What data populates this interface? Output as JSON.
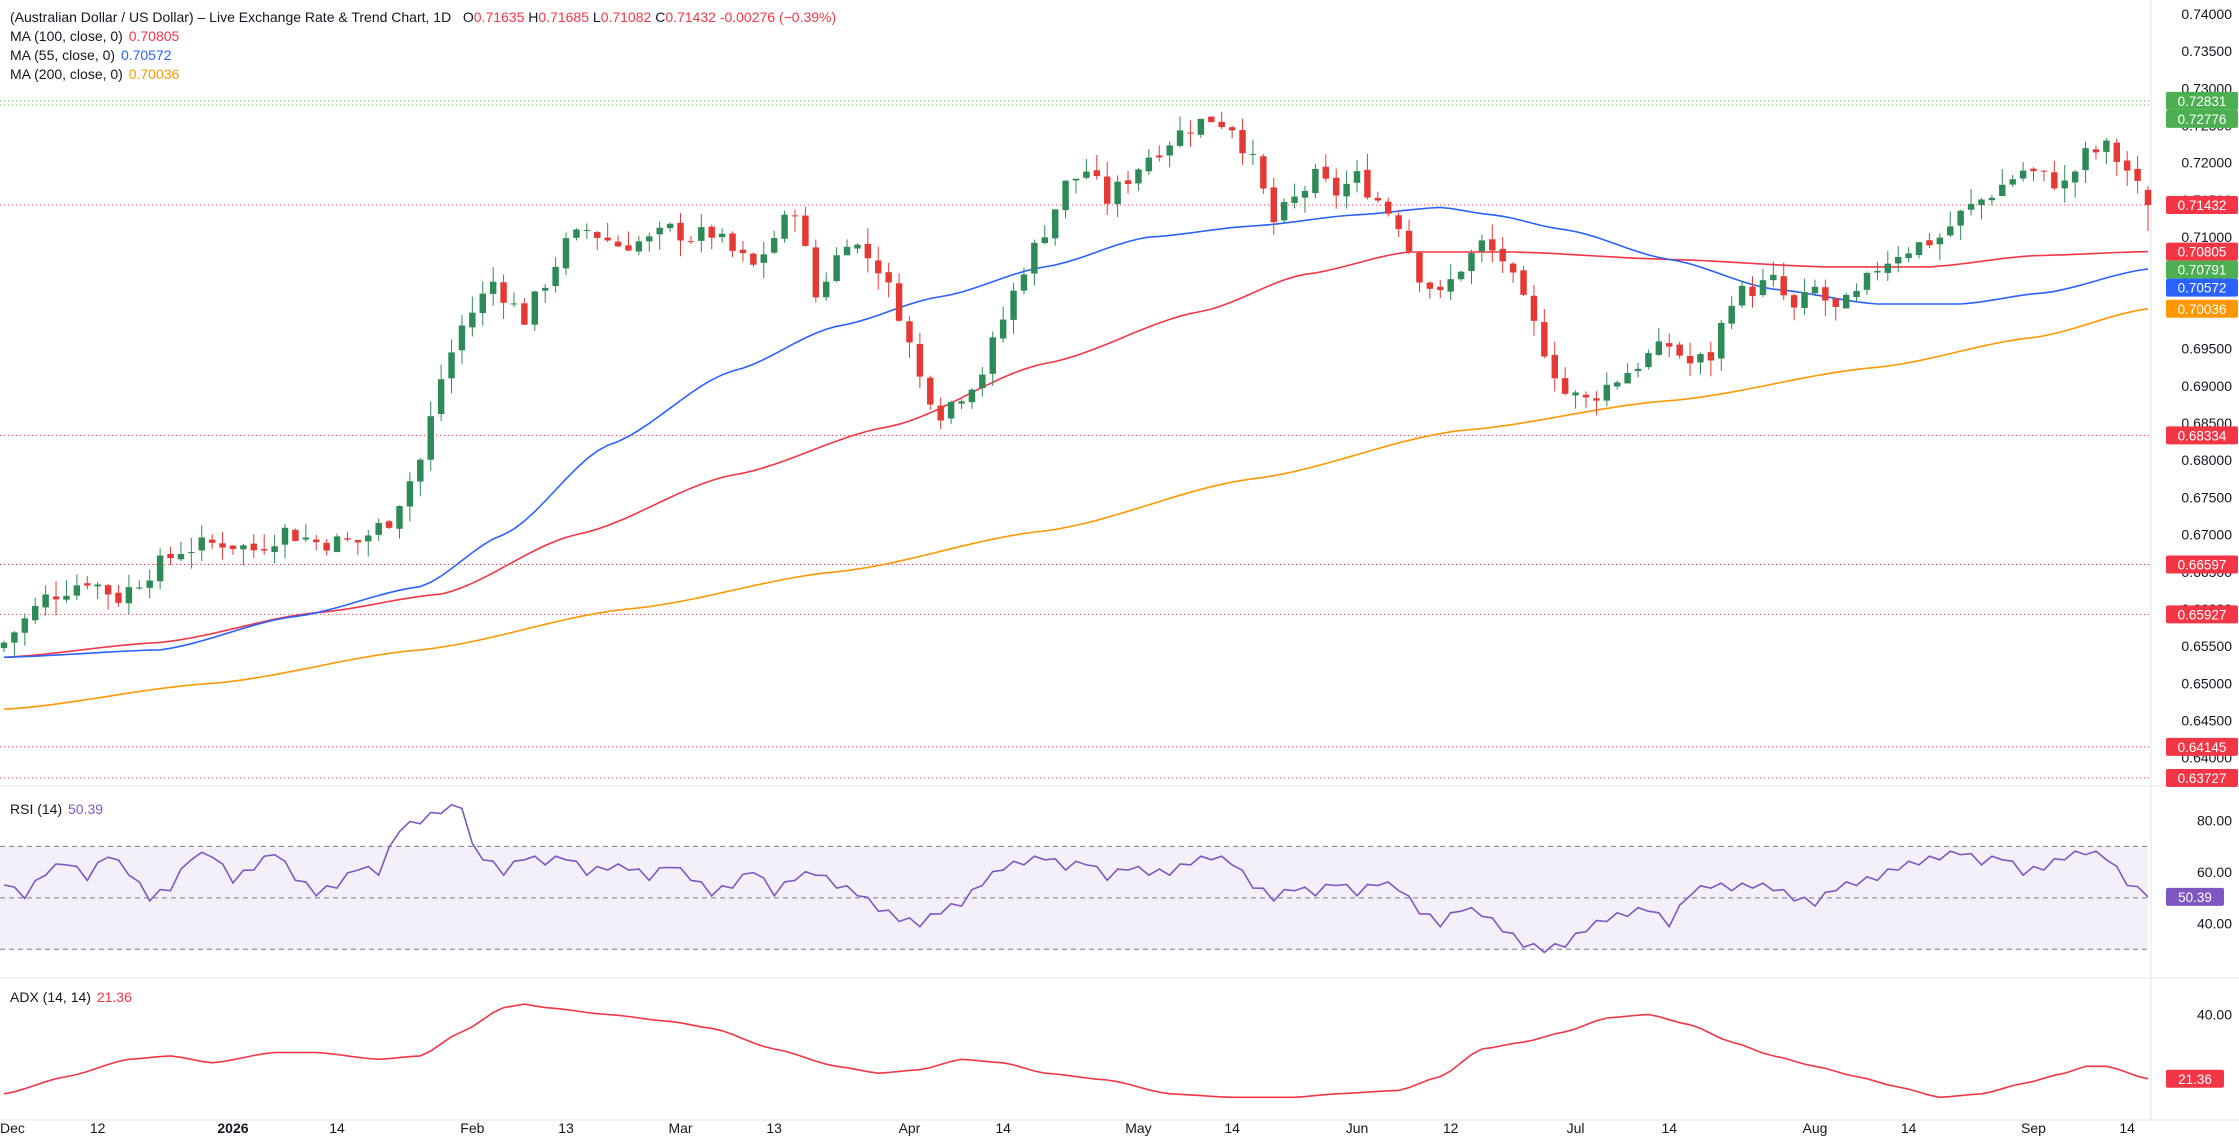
{
  "header": {
    "title": "(Australian Dollar / US Dollar) – Live Exchange Rate & Trend Chart, 1D",
    "open_label": "O",
    "open": "0.71635",
    "high_label": "H",
    "high": "0.71685",
    "low_label": "L",
    "low": "0.71082",
    "close_label": "C",
    "close": "0.71432",
    "change": "-0.00276 (−0.39%)"
  },
  "indicators": {
    "ma100": {
      "label": "MA (100, close, 0)",
      "value": "0.70805",
      "color": "#f23645"
    },
    "ma55": {
      "label": "MA (55, close, 0)",
      "value": "0.70572",
      "color": "#2962ff"
    },
    "ma200": {
      "label": "MA (200, close, 0)",
      "value": "0.70036",
      "color": "#ff9800"
    },
    "rsi": {
      "label": "RSI (14)",
      "value": "50.39",
      "color": "#7e57c2"
    },
    "adx": {
      "label": "ADX (14, 14)",
      "value": "21.36",
      "color": "#f23645"
    }
  },
  "chart_data": {
    "type": "candlestick",
    "price_axis": {
      "range": [
        0.637,
        0.74
      ],
      "ticks": [
        "0.74000",
        "0.73500",
        "0.73000",
        "0.72500",
        "0.72000",
        "0.71500",
        "0.71000",
        "0.70500",
        "0.70000",
        "0.69500",
        "0.69000",
        "0.68500",
        "0.68000",
        "0.67500",
        "0.67000",
        "0.66500",
        "0.66000",
        "0.65500",
        "0.65000",
        "0.64500",
        "0.64000"
      ]
    },
    "time_axis": {
      "labels": [
        {
          "label": "Dec",
          "index": 0
        },
        {
          "label": "12",
          "index": 9
        },
        {
          "label": "2026",
          "index": 22,
          "bold": true
        },
        {
          "label": "14",
          "index": 32
        },
        {
          "label": "Feb",
          "index": 45
        },
        {
          "label": "13",
          "index": 54
        },
        {
          "label": "Mar",
          "index": 65
        },
        {
          "label": "13",
          "index": 74
        },
        {
          "label": "Apr",
          "index": 87
        },
        {
          "label": "14",
          "index": 96
        },
        {
          "label": "May",
          "index": 109
        },
        {
          "label": "14",
          "index": 118
        },
        {
          "label": "Jun",
          "index": 130
        },
        {
          "label": "12",
          "index": 139
        },
        {
          "label": "Jul",
          "index": 151
        },
        {
          "label": "14",
          "index": 160
        },
        {
          "label": "Aug",
          "index": 174
        },
        {
          "label": "14",
          "index": 183
        },
        {
          "label": "Sep",
          "index": 195
        },
        {
          "label": "14",
          "index": 204
        }
      ]
    },
    "horizontal_levels": [
      {
        "value": 0.72831,
        "label": "0.72831",
        "color": "#4caf50"
      },
      {
        "value": 0.72776,
        "label": "0.72776",
        "color": "#4caf50"
      },
      {
        "value": 0.71432,
        "label": "0.71432",
        "color": "#f23645"
      },
      {
        "value": 0.68334,
        "label": "0.68334",
        "color": "#f23645"
      },
      {
        "value": 0.66597,
        "label": "0.66597",
        "color": "#f23645"
      },
      {
        "value": 0.65927,
        "label": "0.65927",
        "color": "#f23645"
      },
      {
        "value": 0.64145,
        "label": "0.64145",
        "color": "#f23645"
      },
      {
        "value": 0.63727,
        "label": "0.63727",
        "color": "#f23645"
      }
    ],
    "price_badges": [
      {
        "value": 0.70805,
        "label": "0.70805",
        "color": "#f23645"
      },
      {
        "value": 0.70791,
        "label": "0.70791",
        "color": "#4caf50"
      },
      {
        "value": 0.70572,
        "label": "0.70572",
        "color": "#2962ff"
      },
      {
        "value": 0.70036,
        "label": "0.70036",
        "color": "#ff9800"
      }
    ],
    "close_path": [
      [
        0,
        0.6555
      ],
      [
        4,
        0.6615
      ],
      [
        8,
        0.664
      ],
      [
        11,
        0.6615
      ],
      [
        14,
        0.665
      ],
      [
        17,
        0.668
      ],
      [
        21,
        0.669
      ],
      [
        24,
        0.668
      ],
      [
        27,
        0.6705
      ],
      [
        30,
        0.669
      ],
      [
        34,
        0.669
      ],
      [
        37,
        0.672
      ],
      [
        40,
        0.68
      ],
      [
        42,
        0.691
      ],
      [
        44,
        0.698
      ],
      [
        47,
        0.704
      ],
      [
        50,
        0.699
      ],
      [
        52,
        0.704
      ],
      [
        54,
        0.709
      ],
      [
        56,
        0.711
      ],
      [
        59,
        0.709
      ],
      [
        62,
        0.7095
      ],
      [
        64,
        0.711
      ],
      [
        66,
        0.71
      ],
      [
        68,
        0.7105
      ],
      [
        70,
        0.708
      ],
      [
        72,
        0.706
      ],
      [
        74,
        0.71
      ],
      [
        76,
        0.714
      ],
      [
        78,
        0.702
      ],
      [
        81,
        0.71
      ],
      [
        84,
        0.706
      ],
      [
        86,
        0.7
      ],
      [
        88,
        0.691
      ],
      [
        90,
        0.6865
      ],
      [
        92,
        0.689
      ],
      [
        94,
        0.692
      ],
      [
        96,
        0.699
      ],
      [
        98,
        0.706
      ],
      [
        100,
        0.711
      ],
      [
        102,
        0.717
      ],
      [
        104,
        0.719
      ],
      [
        106,
        0.715
      ],
      [
        108,
        0.718
      ],
      [
        110,
        0.721
      ],
      [
        112,
        0.723
      ],
      [
        114,
        0.725
      ],
      [
        116,
        0.726
      ],
      [
        118,
        0.725
      ],
      [
        120,
        0.72
      ],
      [
        122,
        0.712
      ],
      [
        124,
        0.715
      ],
      [
        126,
        0.718
      ],
      [
        128,
        0.716
      ],
      [
        130,
        0.718
      ],
      [
        132,
        0.715
      ],
      [
        134,
        0.712
      ],
      [
        136,
        0.705
      ],
      [
        138,
        0.702
      ],
      [
        140,
        0.706
      ],
      [
        142,
        0.709
      ],
      [
        144,
        0.707
      ],
      [
        146,
        0.701
      ],
      [
        148,
        0.695
      ],
      [
        150,
        0.689
      ],
      [
        152,
        0.688
      ],
      [
        154,
        0.69
      ],
      [
        156,
        0.692
      ],
      [
        158,
        0.694
      ],
      [
        160,
        0.6955
      ],
      [
        162,
        0.693
      ],
      [
        164,
        0.694
      ],
      [
        166,
        0.702
      ],
      [
        168,
        0.703
      ],
      [
        170,
        0.704
      ],
      [
        172,
        0.7
      ],
      [
        174,
        0.703
      ],
      [
        176,
        0.7
      ],
      [
        178,
        0.702
      ],
      [
        180,
        0.706
      ],
      [
        182,
        0.708
      ],
      [
        184,
        0.709
      ],
      [
        186,
        0.71
      ],
      [
        188,
        0.713
      ],
      [
        190,
        0.715
      ],
      [
        192,
        0.717
      ],
      [
        194,
        0.719
      ],
      [
        196,
        0.718
      ],
      [
        198,
        0.717
      ],
      [
        200,
        0.721
      ],
      [
        202,
        0.722
      ],
      [
        204,
        0.719
      ],
      [
        206,
        0.7143
      ]
    ],
    "ma_series": [
      {
        "name": "MA (100, close, 0)",
        "color": "#f23645",
        "points": [
          [
            0,
            0.6535
          ],
          [
            15,
            0.6555
          ],
          [
            30,
            0.6595
          ],
          [
            42,
            0.662
          ],
          [
            55,
            0.67
          ],
          [
            70,
            0.678
          ],
          [
            85,
            0.6845
          ],
          [
            100,
            0.693
          ],
          [
            115,
            0.7
          ],
          [
            125,
            0.705
          ],
          [
            135,
            0.708
          ],
          [
            145,
            0.708
          ],
          [
            160,
            0.707
          ],
          [
            175,
            0.706
          ],
          [
            185,
            0.706
          ],
          [
            195,
            0.7075
          ],
          [
            206,
            0.70805
          ]
        ]
      },
      {
        "name": "MA (55, close, 0)",
        "color": "#2962ff",
        "points": [
          [
            0,
            0.6535
          ],
          [
            15,
            0.6545
          ],
          [
            28,
            0.659
          ],
          [
            40,
            0.663
          ],
          [
            48,
            0.67
          ],
          [
            58,
            0.682
          ],
          [
            70,
            0.692
          ],
          [
            80,
            0.698
          ],
          [
            90,
            0.702
          ],
          [
            100,
            0.706
          ],
          [
            110,
            0.71
          ],
          [
            120,
            0.7115
          ],
          [
            130,
            0.713
          ],
          [
            138,
            0.714
          ],
          [
            143,
            0.713
          ],
          [
            150,
            0.711
          ],
          [
            160,
            0.707
          ],
          [
            170,
            0.703
          ],
          [
            180,
            0.701
          ],
          [
            188,
            0.701
          ],
          [
            196,
            0.7025
          ],
          [
            206,
            0.70572
          ]
        ]
      },
      {
        "name": "MA (200, close, 0)",
        "color": "#ff9800",
        "points": [
          [
            0,
            0.6465
          ],
          [
            20,
            0.65
          ],
          [
            40,
            0.6545
          ],
          [
            60,
            0.66
          ],
          [
            80,
            0.665
          ],
          [
            100,
            0.6705
          ],
          [
            120,
            0.6775
          ],
          [
            140,
            0.684
          ],
          [
            160,
            0.688
          ],
          [
            180,
            0.6925
          ],
          [
            195,
            0.6965
          ],
          [
            206,
            0.70036
          ]
        ]
      }
    ],
    "rsi": {
      "range": [
        20,
        90
      ],
      "ticks": [
        "80.00",
        "60.00",
        "40.00"
      ],
      "band": [
        30,
        70
      ],
      "midline": 50,
      "last": 50.39,
      "last_label": "50.39",
      "points": [
        [
          0,
          55
        ],
        [
          2,
          51
        ],
        [
          4,
          60
        ],
        [
          6,
          64
        ],
        [
          8,
          58
        ],
        [
          10,
          67
        ],
        [
          12,
          60
        ],
        [
          14,
          50
        ],
        [
          16,
          54
        ],
        [
          18,
          66
        ],
        [
          20,
          67
        ],
        [
          22,
          57
        ],
        [
          24,
          62
        ],
        [
          26,
          68
        ],
        [
          28,
          58
        ],
        [
          30,
          52
        ],
        [
          32,
          55
        ],
        [
          34,
          62
        ],
        [
          36,
          60
        ],
        [
          38,
          77
        ],
        [
          40,
          80
        ],
        [
          42,
          84
        ],
        [
          44,
          86
        ],
        [
          45,
          70
        ],
        [
          46,
          66
        ],
        [
          48,
          60
        ],
        [
          50,
          66
        ],
        [
          52,
          64
        ],
        [
          54,
          66
        ],
        [
          56,
          60
        ],
        [
          58,
          62
        ],
        [
          60,
          62
        ],
        [
          62,
          58
        ],
        [
          64,
          63
        ],
        [
          66,
          58
        ],
        [
          68,
          52
        ],
        [
          70,
          55
        ],
        [
          72,
          61
        ],
        [
          74,
          52
        ],
        [
          76,
          58
        ],
        [
          78,
          60
        ],
        [
          80,
          55
        ],
        [
          82,
          52
        ],
        [
          84,
          46
        ],
        [
          86,
          42
        ],
        [
          88,
          40
        ],
        [
          90,
          45
        ],
        [
          92,
          48
        ],
        [
          94,
          56
        ],
        [
          96,
          62
        ],
        [
          98,
          64
        ],
        [
          100,
          66
        ],
        [
          102,
          62
        ],
        [
          104,
          64
        ],
        [
          106,
          58
        ],
        [
          108,
          62
        ],
        [
          110,
          60
        ],
        [
          112,
          60
        ],
        [
          114,
          64
        ],
        [
          116,
          66
        ],
        [
          118,
          64
        ],
        [
          120,
          55
        ],
        [
          122,
          50
        ],
        [
          124,
          54
        ],
        [
          126,
          52
        ],
        [
          128,
          56
        ],
        [
          130,
          52
        ],
        [
          132,
          56
        ],
        [
          134,
          54
        ],
        [
          136,
          45
        ],
        [
          138,
          40
        ],
        [
          140,
          46
        ],
        [
          142,
          44
        ],
        [
          144,
          38
        ],
        [
          146,
          32
        ],
        [
          148,
          30
        ],
        [
          150,
          32
        ],
        [
          152,
          38
        ],
        [
          154,
          42
        ],
        [
          156,
          44
        ],
        [
          158,
          46
        ],
        [
          160,
          40
        ],
        [
          162,
          52
        ],
        [
          164,
          55
        ],
        [
          166,
          54
        ],
        [
          168,
          55
        ],
        [
          170,
          54
        ],
        [
          172,
          50
        ],
        [
          174,
          48
        ],
        [
          176,
          54
        ],
        [
          178,
          56
        ],
        [
          180,
          58
        ],
        [
          182,
          62
        ],
        [
          184,
          64
        ],
        [
          186,
          66
        ],
        [
          188,
          68
        ],
        [
          190,
          64
        ],
        [
          192,
          66
        ],
        [
          194,
          60
        ],
        [
          196,
          62
        ],
        [
          198,
          66
        ],
        [
          200,
          68
        ],
        [
          202,
          66
        ],
        [
          204,
          56
        ],
        [
          206,
          50.39
        ]
      ]
    },
    "adx": {
      "range": [
        10,
        50
      ],
      "ticks": [
        "40.00"
      ],
      "last": 21.36,
      "last_label": "21.36",
      "points": [
        [
          0,
          17
        ],
        [
          6,
          22
        ],
        [
          12,
          27
        ],
        [
          16,
          28
        ],
        [
          20,
          26
        ],
        [
          26,
          29
        ],
        [
          30,
          29
        ],
        [
          36,
          27
        ],
        [
          40,
          28
        ],
        [
          44,
          35
        ],
        [
          48,
          42
        ],
        [
          50,
          43
        ],
        [
          52,
          42
        ],
        [
          58,
          40
        ],
        [
          64,
          38
        ],
        [
          68,
          36
        ],
        [
          74,
          30
        ],
        [
          80,
          25
        ],
        [
          84,
          23
        ],
        [
          88,
          24
        ],
        [
          92,
          27
        ],
        [
          96,
          26
        ],
        [
          100,
          23
        ],
        [
          106,
          21
        ],
        [
          112,
          17
        ],
        [
          118,
          16
        ],
        [
          124,
          16
        ],
        [
          128,
          17
        ],
        [
          134,
          18
        ],
        [
          138,
          22
        ],
        [
          142,
          30
        ],
        [
          146,
          32
        ],
        [
          150,
          35
        ],
        [
          154,
          39
        ],
        [
          158,
          40
        ],
        [
          162,
          37
        ],
        [
          166,
          32
        ],
        [
          170,
          28
        ],
        [
          174,
          25
        ],
        [
          178,
          22
        ],
        [
          182,
          19
        ],
        [
          186,
          16
        ],
        [
          190,
          17
        ],
        [
          194,
          20
        ],
        [
          198,
          23
        ],
        [
          200,
          25
        ],
        [
          202,
          25
        ],
        [
          206,
          21.36
        ]
      ]
    }
  }
}
